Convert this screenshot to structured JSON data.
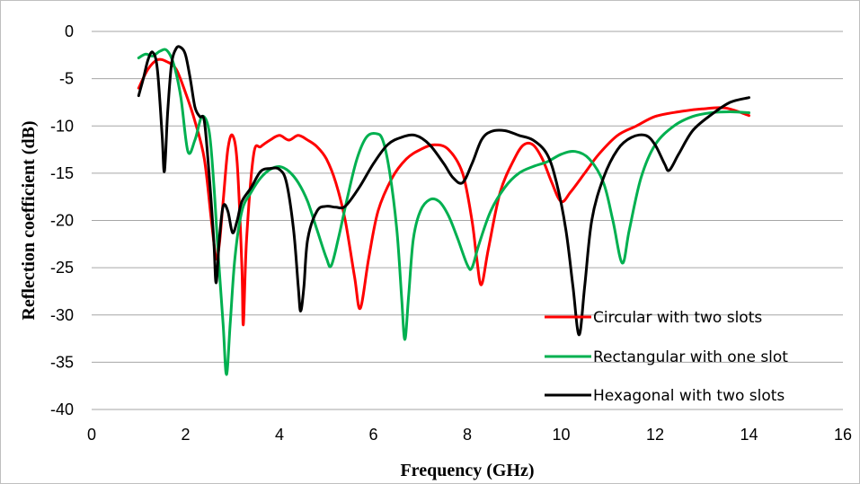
{
  "chart_data": {
    "type": "line",
    "title": "",
    "xlabel": "Frequency (GHz)",
    "ylabel": "Reflection coefficient (dB)",
    "xlim": [
      0,
      16
    ],
    "ylim": [
      -40,
      0
    ],
    "xticks": [
      0,
      2,
      4,
      6,
      8,
      10,
      12,
      14,
      16
    ],
    "yticks": [
      0,
      -5,
      -10,
      -15,
      -20,
      -25,
      -30,
      -35,
      -40
    ],
    "grid": "horizontal",
    "legend": "bottom-right",
    "series": [
      {
        "name": "Circular with two slots",
        "color": "#ff0000",
        "points": [
          [
            1.0,
            -6.0
          ],
          [
            1.2,
            -4.0
          ],
          [
            1.4,
            -3.0
          ],
          [
            1.6,
            -3.2
          ],
          [
            1.8,
            -4.0
          ],
          [
            2.0,
            -6.5
          ],
          [
            2.2,
            -9.5
          ],
          [
            2.4,
            -13.5
          ],
          [
            2.55,
            -20.0
          ],
          [
            2.65,
            -24.0
          ],
          [
            2.72,
            -22.5
          ],
          [
            2.8,
            -18.0
          ],
          [
            2.9,
            -12.5
          ],
          [
            3.0,
            -11.0
          ],
          [
            3.1,
            -14.0
          ],
          [
            3.2,
            -25.0
          ],
          [
            3.23,
            -31.0
          ],
          [
            3.3,
            -22.0
          ],
          [
            3.45,
            -13.0
          ],
          [
            3.6,
            -12.2
          ],
          [
            3.8,
            -11.5
          ],
          [
            4.0,
            -11.0
          ],
          [
            4.2,
            -11.5
          ],
          [
            4.4,
            -11.0
          ],
          [
            4.6,
            -11.5
          ],
          [
            4.8,
            -12.2
          ],
          [
            5.0,
            -13.5
          ],
          [
            5.2,
            -16.0
          ],
          [
            5.4,
            -20.0
          ],
          [
            5.6,
            -26.0
          ],
          [
            5.72,
            -29.3
          ],
          [
            5.9,
            -24.0
          ],
          [
            6.1,
            -19.0
          ],
          [
            6.4,
            -15.5
          ],
          [
            6.7,
            -13.5
          ],
          [
            7.0,
            -12.5
          ],
          [
            7.3,
            -12.0
          ],
          [
            7.6,
            -12.5
          ],
          [
            7.9,
            -15.0
          ],
          [
            8.1,
            -20.0
          ],
          [
            8.2,
            -24.0
          ],
          [
            8.3,
            -26.8
          ],
          [
            8.45,
            -23.0
          ],
          [
            8.7,
            -17.0
          ],
          [
            9.0,
            -13.5
          ],
          [
            9.2,
            -12.0
          ],
          [
            9.4,
            -12.0
          ],
          [
            9.6,
            -13.5
          ],
          [
            9.8,
            -16.0
          ],
          [
            10.0,
            -18.0
          ],
          [
            10.2,
            -17.0
          ],
          [
            10.5,
            -15.0
          ],
          [
            10.8,
            -13.0
          ],
          [
            11.2,
            -11.0
          ],
          [
            11.6,
            -10.0
          ],
          [
            12.0,
            -9.0
          ],
          [
            12.5,
            -8.5
          ],
          [
            13.0,
            -8.2
          ],
          [
            13.5,
            -8.1
          ],
          [
            14.0,
            -8.9
          ]
        ]
      },
      {
        "name": "Rectangular with one slot",
        "color": "#00b050",
        "points": [
          [
            1.0,
            -2.8
          ],
          [
            1.15,
            -2.4
          ],
          [
            1.3,
            -2.6
          ],
          [
            1.45,
            -2.1
          ],
          [
            1.6,
            -2.0
          ],
          [
            1.75,
            -3.5
          ],
          [
            1.9,
            -7.0
          ],
          [
            2.05,
            -12.7
          ],
          [
            2.2,
            -11.5
          ],
          [
            2.35,
            -9.0
          ],
          [
            2.5,
            -10.5
          ],
          [
            2.6,
            -16.0
          ],
          [
            2.7,
            -24.0
          ],
          [
            2.8,
            -31.0
          ],
          [
            2.87,
            -36.3
          ],
          [
            2.95,
            -31.0
          ],
          [
            3.05,
            -24.0
          ],
          [
            3.2,
            -19.0
          ],
          [
            3.4,
            -17.0
          ],
          [
            3.6,
            -15.5
          ],
          [
            3.8,
            -14.6
          ],
          [
            4.0,
            -14.3
          ],
          [
            4.2,
            -14.8
          ],
          [
            4.4,
            -16.0
          ],
          [
            4.6,
            -18.0
          ],
          [
            4.8,
            -21.0
          ],
          [
            5.0,
            -24.0
          ],
          [
            5.1,
            -24.8
          ],
          [
            5.25,
            -22.0
          ],
          [
            5.45,
            -17.5
          ],
          [
            5.65,
            -13.5
          ],
          [
            5.85,
            -11.2
          ],
          [
            6.05,
            -10.8
          ],
          [
            6.2,
            -11.5
          ],
          [
            6.35,
            -15.0
          ],
          [
            6.5,
            -21.0
          ],
          [
            6.6,
            -28.0
          ],
          [
            6.67,
            -32.6
          ],
          [
            6.75,
            -28.0
          ],
          [
            6.85,
            -22.0
          ],
          [
            7.0,
            -19.0
          ],
          [
            7.2,
            -17.8
          ],
          [
            7.4,
            -18.0
          ],
          [
            7.6,
            -19.5
          ],
          [
            7.8,
            -22.0
          ],
          [
            8.0,
            -24.7
          ],
          [
            8.1,
            -25.0
          ],
          [
            8.25,
            -22.5
          ],
          [
            8.5,
            -19.0
          ],
          [
            8.8,
            -16.5
          ],
          [
            9.1,
            -15.0
          ],
          [
            9.4,
            -14.3
          ],
          [
            9.7,
            -13.8
          ],
          [
            10.0,
            -13.0
          ],
          [
            10.3,
            -12.7
          ],
          [
            10.6,
            -13.5
          ],
          [
            10.9,
            -16.0
          ],
          [
            11.1,
            -20.0
          ],
          [
            11.3,
            -24.5
          ],
          [
            11.45,
            -21.0
          ],
          [
            11.7,
            -15.5
          ],
          [
            12.0,
            -12.0
          ],
          [
            12.4,
            -10.0
          ],
          [
            12.8,
            -9.0
          ],
          [
            13.2,
            -8.6
          ],
          [
            13.6,
            -8.5
          ],
          [
            14.0,
            -8.6
          ]
        ]
      },
      {
        "name": "Hexagonal with two slots",
        "color": "#000000",
        "points": [
          [
            1.0,
            -6.8
          ],
          [
            1.1,
            -5.0
          ],
          [
            1.2,
            -3.0
          ],
          [
            1.3,
            -2.2
          ],
          [
            1.4,
            -4.0
          ],
          [
            1.5,
            -11.0
          ],
          [
            1.55,
            -14.8
          ],
          [
            1.62,
            -8.5
          ],
          [
            1.7,
            -3.5
          ],
          [
            1.8,
            -1.8
          ],
          [
            1.9,
            -1.7
          ],
          [
            2.0,
            -2.5
          ],
          [
            2.1,
            -5.0
          ],
          [
            2.2,
            -8.0
          ],
          [
            2.3,
            -9.0
          ],
          [
            2.4,
            -9.5
          ],
          [
            2.5,
            -15.0
          ],
          [
            2.6,
            -22.0
          ],
          [
            2.65,
            -26.6
          ],
          [
            2.72,
            -22.0
          ],
          [
            2.8,
            -18.5
          ],
          [
            2.9,
            -19.0
          ],
          [
            3.0,
            -21.3
          ],
          [
            3.1,
            -20.0
          ],
          [
            3.2,
            -18.0
          ],
          [
            3.4,
            -16.5
          ],
          [
            3.6,
            -14.8
          ],
          [
            3.8,
            -14.5
          ],
          [
            4.0,
            -14.6
          ],
          [
            4.15,
            -16.0
          ],
          [
            4.3,
            -21.0
          ],
          [
            4.4,
            -27.0
          ],
          [
            4.45,
            -29.6
          ],
          [
            4.52,
            -27.0
          ],
          [
            4.6,
            -22.0
          ],
          [
            4.8,
            -19.0
          ],
          [
            5.0,
            -18.5
          ],
          [
            5.2,
            -18.6
          ],
          [
            5.4,
            -18.5
          ],
          [
            5.7,
            -16.5
          ],
          [
            6.0,
            -14.0
          ],
          [
            6.3,
            -12.0
          ],
          [
            6.6,
            -11.2
          ],
          [
            6.9,
            -11.0
          ],
          [
            7.2,
            -12.0
          ],
          [
            7.5,
            -14.0
          ],
          [
            7.7,
            -15.5
          ],
          [
            7.9,
            -16.0
          ],
          [
            8.1,
            -14.0
          ],
          [
            8.3,
            -11.5
          ],
          [
            8.5,
            -10.6
          ],
          [
            8.8,
            -10.5
          ],
          [
            9.1,
            -11.0
          ],
          [
            9.4,
            -11.5
          ],
          [
            9.7,
            -13.0
          ],
          [
            9.9,
            -16.0
          ],
          [
            10.1,
            -21.0
          ],
          [
            10.25,
            -27.0
          ],
          [
            10.38,
            -32.1
          ],
          [
            10.5,
            -27.0
          ],
          [
            10.65,
            -20.0
          ],
          [
            10.9,
            -15.5
          ],
          [
            11.2,
            -12.5
          ],
          [
            11.5,
            -11.2
          ],
          [
            11.8,
            -11.0
          ],
          [
            12.0,
            -12.0
          ],
          [
            12.2,
            -14.0
          ],
          [
            12.3,
            -14.7
          ],
          [
            12.5,
            -13.0
          ],
          [
            12.8,
            -10.5
          ],
          [
            13.2,
            -8.8
          ],
          [
            13.6,
            -7.5
          ],
          [
            14.0,
            -7.0
          ]
        ]
      }
    ]
  }
}
